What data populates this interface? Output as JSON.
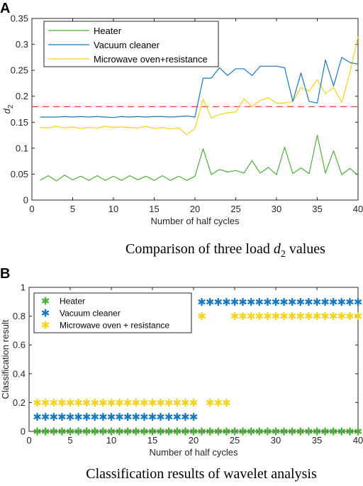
{
  "panels": {
    "a": {
      "letter": "A",
      "caption_text": "Comparison of three load ",
      "caption_var": "d",
      "caption_sub": "2",
      "caption_tail": " values"
    },
    "b": {
      "letter": "B",
      "caption": "Classification results of wavelet analysis"
    }
  },
  "chart_data": [
    {
      "type": "line",
      "xlabel": "Number of half cycles",
      "ylabel_var": "d",
      "ylabel_sub": "2",
      "xlim": [
        0,
        40
      ],
      "ylim": [
        0,
        0.35
      ],
      "xticks": [
        0,
        5,
        10,
        15,
        20,
        25,
        30,
        35,
        40
      ],
      "yticks": [
        0,
        0.05,
        0.1,
        0.15,
        0.2,
        0.25,
        0.3,
        0.35
      ],
      "ytick_labels": [
        "0",
        "0.05",
        "0.1",
        "0.15",
        "0.2",
        "0.25",
        "0.3",
        "0.35"
      ],
      "grid": false,
      "legend_position": "top-left",
      "threshold": {
        "y": 0.18,
        "color": "#e8412e",
        "style": "dashed"
      },
      "x": [
        1,
        2,
        3,
        4,
        5,
        6,
        7,
        8,
        9,
        10,
        11,
        12,
        13,
        14,
        15,
        16,
        17,
        18,
        19,
        20,
        21,
        22,
        23,
        24,
        25,
        26,
        27,
        28,
        29,
        30,
        31,
        32,
        33,
        34,
        35,
        36,
        37,
        38,
        39,
        40
      ],
      "series": [
        {
          "name": "Heater",
          "color": "#4fad3c",
          "values": [
            0.038,
            0.047,
            0.037,
            0.048,
            0.039,
            0.046,
            0.038,
            0.047,
            0.038,
            0.046,
            0.038,
            0.047,
            0.039,
            0.046,
            0.038,
            0.047,
            0.038,
            0.046,
            0.038,
            0.046,
            0.099,
            0.049,
            0.059,
            0.054,
            0.057,
            0.052,
            0.076,
            0.052,
            0.063,
            0.049,
            0.102,
            0.051,
            0.062,
            0.051,
            0.125,
            0.052,
            0.095,
            0.049,
            0.061,
            0.048
          ]
        },
        {
          "name": "Vacuum cleaner",
          "color": "#1a78bf",
          "values": [
            0.16,
            0.16,
            0.16,
            0.161,
            0.16,
            0.161,
            0.16,
            0.161,
            0.16,
            0.159,
            0.161,
            0.16,
            0.161,
            0.16,
            0.161,
            0.161,
            0.16,
            0.161,
            0.162,
            0.16,
            0.235,
            0.235,
            0.255,
            0.24,
            0.253,
            0.253,
            0.24,
            0.258,
            0.258,
            0.258,
            0.255,
            0.19,
            0.245,
            0.19,
            0.187,
            0.27,
            0.22,
            0.275,
            0.265,
            0.262
          ]
        },
        {
          "name": "Microwave oven+resistance",
          "color": "#f5d416",
          "values": [
            0.14,
            0.139,
            0.142,
            0.139,
            0.141,
            0.138,
            0.14,
            0.139,
            0.142,
            0.14,
            0.141,
            0.14,
            0.139,
            0.142,
            0.138,
            0.14,
            0.137,
            0.139,
            0.126,
            0.138,
            0.195,
            0.158,
            0.165,
            0.168,
            0.17,
            0.195,
            0.18,
            0.192,
            0.197,
            0.187,
            0.187,
            0.19,
            0.217,
            0.21,
            0.232,
            0.205,
            0.217,
            0.188,
            0.245,
            0.315
          ]
        }
      ]
    },
    {
      "type": "scatter",
      "marker": "asterisk",
      "xlabel": "Number of half cycles",
      "ylabel": "Classification result",
      "xlim": [
        0,
        40
      ],
      "ylim": [
        0,
        1
      ],
      "xticks": [
        0,
        5,
        10,
        15,
        20,
        25,
        30,
        35,
        40
      ],
      "yticks": [
        0,
        0.2,
        0.4,
        0.6,
        0.8,
        1
      ],
      "ytick_labels": [
        "0",
        "0.2",
        "0.4",
        "0.6",
        "0.8",
        "1"
      ],
      "grid": false,
      "legend_position": "top-left",
      "series": [
        {
          "name": "Heater",
          "color": "#4fad3c",
          "x": [
            1,
            2,
            3,
            4,
            5,
            6,
            7,
            8,
            9,
            10,
            11,
            12,
            13,
            14,
            15,
            16,
            17,
            18,
            19,
            20,
            21,
            22,
            23,
            24,
            25,
            26,
            27,
            28,
            29,
            30,
            31,
            32,
            33,
            34,
            35,
            36,
            37,
            38,
            39,
            40
          ],
          "y": [
            0,
            0,
            0,
            0,
            0,
            0,
            0,
            0,
            0,
            0,
            0,
            0,
            0,
            0,
            0,
            0,
            0,
            0,
            0,
            0,
            0,
            0,
            0,
            0,
            0,
            0,
            0,
            0,
            0,
            0,
            0,
            0,
            0,
            0,
            0,
            0,
            0,
            0,
            0,
            0
          ]
        },
        {
          "name": "Vacuum cleaner",
          "color": "#1a78bf",
          "x": [
            1,
            2,
            3,
            4,
            5,
            6,
            7,
            8,
            9,
            10,
            11,
            12,
            13,
            14,
            15,
            16,
            17,
            18,
            19,
            20,
            21,
            22,
            23,
            24,
            25,
            26,
            27,
            28,
            29,
            30,
            31,
            32,
            33,
            34,
            35,
            36,
            37,
            38,
            39,
            40
          ],
          "y": [
            0.1,
            0.1,
            0.1,
            0.1,
            0.1,
            0.1,
            0.1,
            0.1,
            0.1,
            0.1,
            0.1,
            0.1,
            0.1,
            0.1,
            0.1,
            0.1,
            0.1,
            0.1,
            0.1,
            0.1,
            0.9,
            0.9,
            0.9,
            0.9,
            0.9,
            0.9,
            0.9,
            0.9,
            0.9,
            0.9,
            0.9,
            0.9,
            0.9,
            0.9,
            0.9,
            0.9,
            0.9,
            0.9,
            0.9,
            0.9
          ]
        },
        {
          "name": "Microwave oven + resistance",
          "color": "#f5d416",
          "x": [
            1,
            2,
            3,
            4,
            5,
            6,
            7,
            8,
            9,
            10,
            11,
            12,
            13,
            14,
            15,
            16,
            17,
            18,
            19,
            20,
            21,
            22,
            23,
            24,
            25,
            26,
            27,
            28,
            29,
            30,
            31,
            32,
            33,
            34,
            35,
            36,
            37,
            38,
            39,
            40
          ],
          "y": [
            0.2,
            0.2,
            0.2,
            0.2,
            0.2,
            0.2,
            0.2,
            0.2,
            0.2,
            0.2,
            0.2,
            0.2,
            0.2,
            0.2,
            0.2,
            0.2,
            0.2,
            0.2,
            0.2,
            0.2,
            0.8,
            0.2,
            0.2,
            0.2,
            0.8,
            0.8,
            0.8,
            0.8,
            0.8,
            0.8,
            0.8,
            0.8,
            0.8,
            0.8,
            0.8,
            0.8,
            0.8,
            0.8,
            0.8,
            0.8
          ]
        }
      ]
    }
  ]
}
